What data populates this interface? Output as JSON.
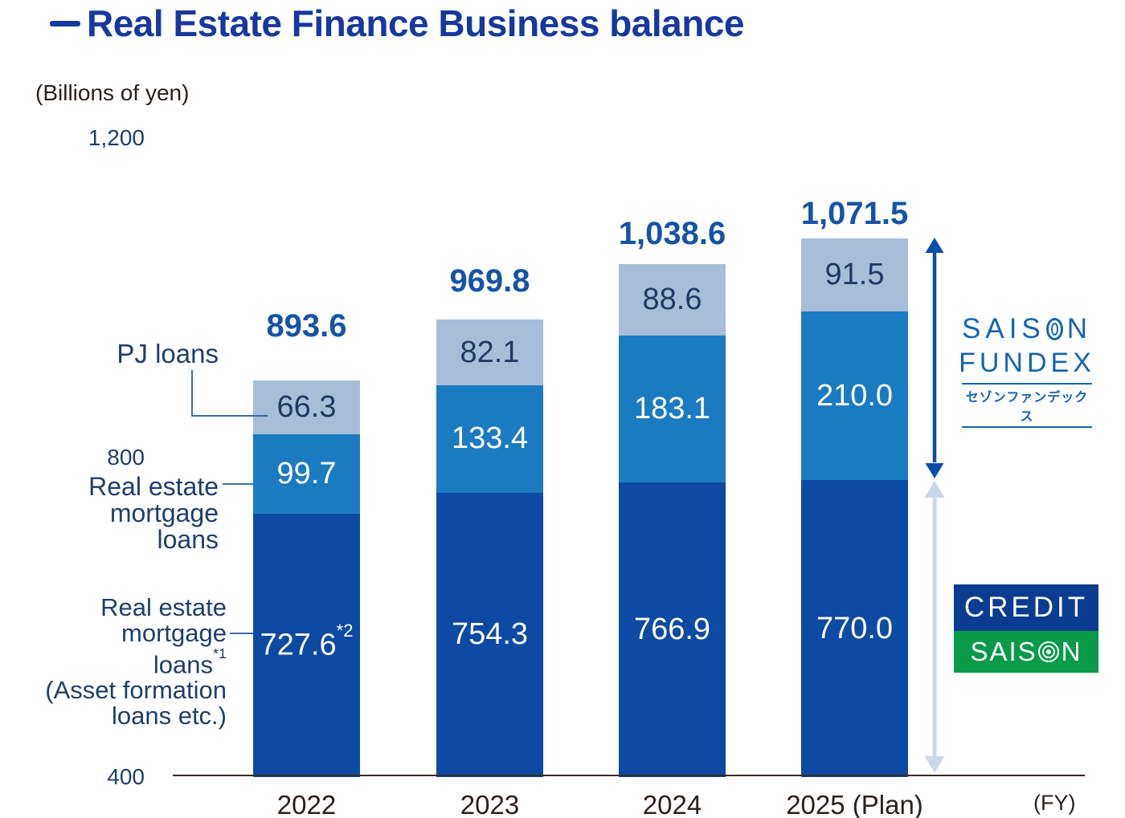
{
  "title": "Real Estate Finance Business balance",
  "y_axis": {
    "unit_label": "(Billions of yen)",
    "ticks": [
      "1,200",
      "800",
      "400"
    ]
  },
  "x_axis": {
    "fy_label": "(FY)"
  },
  "left_labels": {
    "pj": "PJ loans",
    "mortgage_lines": [
      "Real estate",
      "mortgage",
      "loans"
    ],
    "asset_lines": [
      "Real estate",
      "mortgage",
      "loans"
    ],
    "asset_sup": "*1",
    "asset_paren_lines": [
      "(Asset formation",
      "loans etc.)"
    ]
  },
  "chart_data": {
    "type": "bar",
    "stacked": true,
    "title": "Real Estate Finance Business balance",
    "ylabel": "(Billions of yen)",
    "xlabel": "(FY)",
    "ylim": [
      400,
      1200
    ],
    "y_ticks": [
      400,
      800,
      1200
    ],
    "grid": false,
    "legend_position": "left-side labels with connector lines",
    "categories": [
      "2022",
      "2023",
      "2024",
      "2025 (Plan)"
    ],
    "series": [
      {
        "name": "Real estate mortgage loans*1 (Asset formation loans etc.)",
        "key": "dark",
        "values": [
          727.6,
          754.3,
          766.9,
          770.0
        ],
        "labels": [
          "727.6",
          "754.3",
          "766.9",
          "770.0"
        ],
        "label_notes": [
          "*2",
          "",
          "",
          ""
        ],
        "color_key": "bar_dark",
        "owner": "CREDIT SAISON"
      },
      {
        "name": "Real estate mortgage loans",
        "key": "medium",
        "values": [
          99.7,
          133.4,
          183.1,
          210.0
        ],
        "labels": [
          "99.7",
          "133.4",
          "183.1",
          "210.0"
        ],
        "label_notes": [
          "",
          "",
          "",
          ""
        ],
        "color_key": "bar_medium",
        "owner": "SAISON FUNDEX"
      },
      {
        "name": "PJ loans",
        "key": "light",
        "values": [
          66.3,
          82.1,
          88.6,
          91.5
        ],
        "labels": [
          "66.3",
          "82.1",
          "88.6",
          "91.5"
        ],
        "label_notes": [
          "",
          "",
          "",
          ""
        ],
        "color_key": "bar_light",
        "owner": "SAISON FUNDEX"
      }
    ],
    "totals": [
      893.6,
      969.8,
      1038.6,
      1071.5
    ],
    "total_labels": [
      "893.6",
      "969.8",
      "1,038.6",
      "1,071.5"
    ]
  },
  "logos": {
    "fundex": {
      "saison_pre": "SAIS",
      "saison_post": "N",
      "fundex": "FUNDEX",
      "jp": "セゾンファンデックス"
    },
    "credit_saison": {
      "credit": "CREDIT",
      "saison_pre": "SAIS",
      "saison_post": "N"
    }
  },
  "colors": {
    "title_blue": "#18389F",
    "total_blue": "#1553A5",
    "bar_dark": "#0C4AA3",
    "bar_medium": "#1C7AC0",
    "bar_light": "#A8BED8",
    "label_navy": "#203E6C",
    "in_bar_light_text": "#203A63",
    "axis_text_dark": "#2B211D",
    "axis_line": "#3A2B24",
    "connector_blue": "#3E69A8",
    "arrow_blue": "#0C4DA8",
    "arrow_light": "#C9D7E8",
    "fundex_blue": "#1565B2",
    "credit_blue": "#0A3D90",
    "saison_green": "#069A49"
  }
}
